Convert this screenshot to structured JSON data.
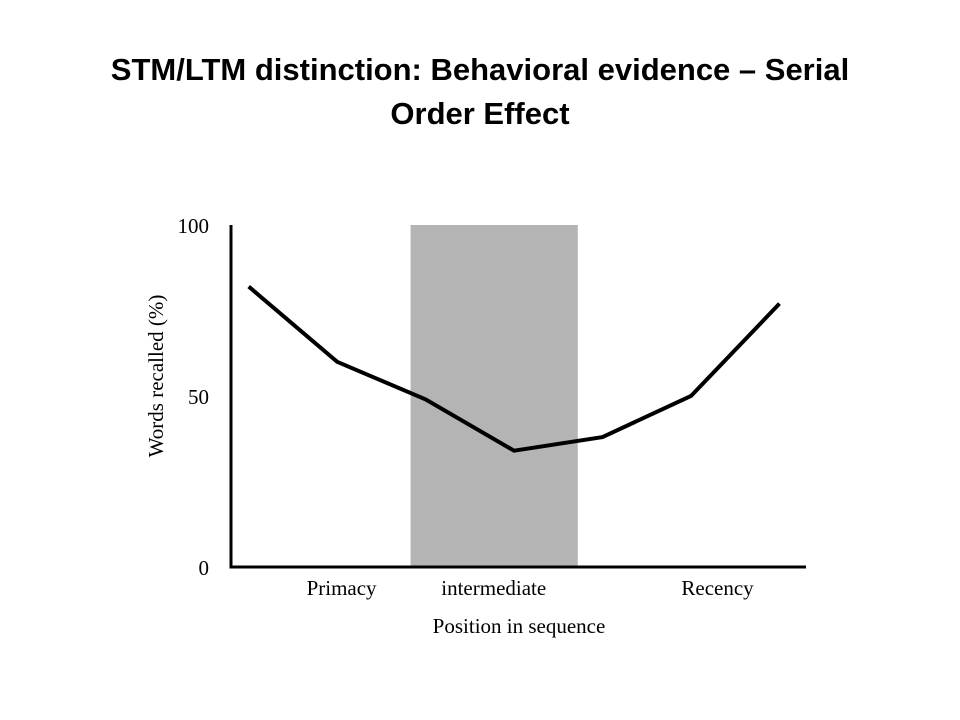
{
  "slide": {
    "title_line1": "STM/LTM distinction: Behavioral evidence – Serial",
    "title_line2": "Order Effect"
  },
  "chart_data": {
    "type": "line",
    "title": "",
    "xlabel": "Position in sequence",
    "ylabel": "Words recalled (%)",
    "ylim": [
      0,
      100
    ],
    "yticks": [
      0,
      50,
      100
    ],
    "categories": [
      "Primacy",
      "intermediate",
      "Recency"
    ],
    "x": [
      1,
      2,
      3,
      4,
      5,
      6,
      7
    ],
    "xlim": [
      0.8,
      7.3
    ],
    "shaded_region": {
      "label": "intermediate",
      "x_range": [
        2.83,
        4.72
      ],
      "color": "#b4b4b4"
    },
    "series": [
      {
        "values": [
          82,
          60,
          49,
          34,
          38,
          50,
          77
        ],
        "color": "#000000"
      }
    ],
    "grid": false
  }
}
